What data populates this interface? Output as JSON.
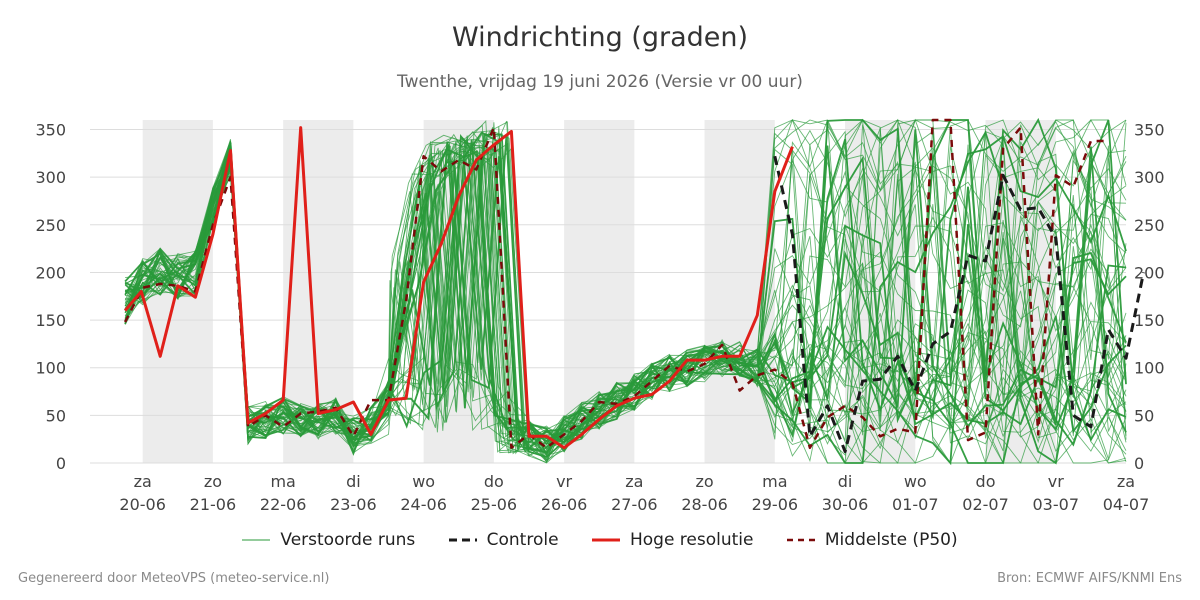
{
  "title": "Windrichting (graden)",
  "subtitle": "Twenthe, vrijdag 19 juni 2026 (Versie vr 00 uur)",
  "footer_left": "Gegenereerd door MeteoVPS (meteo-service.nl)",
  "footer_right": "Bron: ECMWF AIFS/KNMI Ens",
  "legend": {
    "ensemble": "Verstoorde runs",
    "control": "Controle",
    "hires": "Hoge resolutie",
    "median": "Middelste (P50)"
  },
  "colors": {
    "ensemble": "#2a9a3a",
    "control": "#1a1a1a",
    "hires": "#e0201a",
    "median": "#7a0a0a",
    "night_shade": "#ececec",
    "grid": "#dddddd"
  },
  "chart_data": {
    "type": "line",
    "title": "Windrichting (graden)",
    "ylim": [
      0,
      360
    ],
    "yticks": [
      0,
      50,
      100,
      150,
      200,
      250,
      300,
      350
    ],
    "x_unit": "days since 19-06 00:00",
    "xlim": [
      0.75,
      15.0
    ],
    "xticks": [
      {
        "x": 1,
        "day": "za",
        "date": "20-06"
      },
      {
        "x": 2,
        "day": "zo",
        "date": "21-06"
      },
      {
        "x": 3,
        "day": "ma",
        "date": "22-06"
      },
      {
        "x": 4,
        "day": "di",
        "date": "23-06"
      },
      {
        "x": 5,
        "day": "wo",
        "date": "24-06"
      },
      {
        "x": 6,
        "day": "do",
        "date": "25-06"
      },
      {
        "x": 7,
        "day": "vr",
        "date": "26-06"
      },
      {
        "x": 8,
        "day": "za",
        "date": "27-06"
      },
      {
        "x": 9,
        "day": "zo",
        "date": "28-06"
      },
      {
        "x": 10,
        "day": "ma",
        "date": "29-06"
      },
      {
        "x": 11,
        "day": "di",
        "date": "30-06"
      },
      {
        "x": 12,
        "day": "wo",
        "date": "01-07"
      },
      {
        "x": 13,
        "day": "do",
        "date": "02-07"
      },
      {
        "x": 14,
        "day": "vr",
        "date": "03-07"
      },
      {
        "x": 15,
        "day": "za",
        "date": "04-07"
      }
    ],
    "shaded_days": [
      [
        1,
        2
      ],
      [
        3,
        4
      ],
      [
        5,
        6
      ],
      [
        7,
        8
      ],
      [
        9,
        10
      ],
      [
        11,
        12
      ],
      [
        13,
        14
      ]
    ],
    "grid": true,
    "legend_position": "bottom",
    "series": [
      {
        "name": "Hoge resolutie",
        "style": "solid",
        "points": [
          [
            0.75,
            160
          ],
          [
            0.98,
            180
          ],
          [
            1.25,
            112
          ],
          [
            1.5,
            186
          ],
          [
            1.75,
            174
          ],
          [
            2.0,
            240
          ],
          [
            2.25,
            328
          ],
          [
            2.5,
            42
          ],
          [
            2.75,
            52
          ],
          [
            3.0,
            66
          ],
          [
            3.25,
            352
          ],
          [
            3.5,
            52
          ],
          [
            3.75,
            56
          ],
          [
            4.0,
            64
          ],
          [
            4.25,
            30
          ],
          [
            4.5,
            66
          ],
          [
            4.75,
            68
          ],
          [
            5.0,
            190
          ],
          [
            5.25,
            230
          ],
          [
            5.5,
            280
          ],
          [
            5.75,
            318
          ],
          [
            6.0,
            334
          ],
          [
            6.25,
            348
          ],
          [
            6.5,
            28
          ],
          [
            6.75,
            28
          ],
          [
            7.0,
            16
          ],
          [
            7.25,
            30
          ],
          [
            7.5,
            46
          ],
          [
            7.75,
            60
          ],
          [
            8.0,
            68
          ],
          [
            8.25,
            72
          ],
          [
            8.5,
            86
          ],
          [
            8.75,
            108
          ],
          [
            9.0,
            108
          ],
          [
            9.25,
            112
          ],
          [
            9.5,
            112
          ],
          [
            9.75,
            155
          ],
          [
            10.0,
            285
          ],
          [
            10.25,
            332
          ]
        ]
      },
      {
        "name": "Controle",
        "style": "dashed",
        "points": [
          [
            10.0,
            322
          ],
          [
            10.25,
            240
          ],
          [
            10.5,
            28
          ],
          [
            10.75,
            60
          ],
          [
            11.0,
            12
          ],
          [
            11.25,
            86
          ],
          [
            11.5,
            88
          ],
          [
            11.75,
            112
          ],
          [
            12.0,
            76
          ],
          [
            12.25,
            125
          ],
          [
            12.5,
            138
          ],
          [
            12.75,
            218
          ],
          [
            13.0,
            212
          ],
          [
            13.25,
            302
          ],
          [
            13.5,
            266
          ],
          [
            13.75,
            268
          ],
          [
            14.0,
            236
          ],
          [
            14.25,
            50
          ],
          [
            14.5,
            38
          ],
          [
            14.75,
            140
          ],
          [
            15.0,
            110
          ],
          [
            15.25,
            200
          ]
        ]
      },
      {
        "name": "Middelste (P50)",
        "style": "dashed",
        "points": [
          [
            0.75,
            148
          ],
          [
            1.0,
            184
          ],
          [
            1.25,
            188
          ],
          [
            1.5,
            186
          ],
          [
            1.75,
            180
          ],
          [
            2.0,
            250
          ],
          [
            2.25,
            300
          ],
          [
            2.5,
            38
          ],
          [
            2.75,
            50
          ],
          [
            3.0,
            38
          ],
          [
            3.25,
            52
          ],
          [
            3.5,
            54
          ],
          [
            3.75,
            58
          ],
          [
            4.0,
            28
          ],
          [
            4.25,
            66
          ],
          [
            4.5,
            66
          ],
          [
            4.75,
            170
          ],
          [
            5.0,
            322
          ],
          [
            5.25,
            306
          ],
          [
            5.5,
            318
          ],
          [
            5.75,
            308
          ],
          [
            6.0,
            352
          ],
          [
            6.25,
            16
          ],
          [
            6.5,
            30
          ],
          [
            6.75,
            16
          ],
          [
            7.0,
            30
          ],
          [
            7.25,
            44
          ],
          [
            7.5,
            64
          ],
          [
            7.75,
            62
          ],
          [
            8.0,
            70
          ],
          [
            8.25,
            86
          ],
          [
            8.5,
            102
          ],
          [
            8.75,
            96
          ],
          [
            9.0,
            104
          ],
          [
            9.25,
            124
          ],
          [
            9.5,
            76
          ],
          [
            9.75,
            92
          ],
          [
            10.0,
            98
          ],
          [
            10.25,
            84
          ],
          [
            10.5,
            16
          ],
          [
            10.75,
            48
          ],
          [
            11.0,
            60
          ],
          [
            11.25,
            48
          ],
          [
            11.5,
            28
          ],
          [
            11.75,
            36
          ],
          [
            12.0,
            32
          ],
          [
            12.25,
            360
          ],
          [
            12.5,
            360
          ],
          [
            12.75,
            24
          ],
          [
            13.0,
            32
          ],
          [
            13.25,
            330
          ],
          [
            13.5,
            352
          ],
          [
            13.75,
            30
          ],
          [
            14.0,
            302
          ],
          [
            14.25,
            290
          ],
          [
            14.5,
            338
          ],
          [
            14.75,
            338
          ]
        ]
      }
    ],
    "ensemble": {
      "name": "Verstoorde runs",
      "members": 50,
      "x_step": 0.25,
      "typical_path": [
        [
          0.75,
          170
        ],
        [
          1.0,
          190
        ],
        [
          1.25,
          200
        ],
        [
          1.5,
          195
        ],
        [
          1.75,
          200
        ],
        [
          2.0,
          270
        ],
        [
          2.25,
          320
        ],
        [
          2.5,
          40
        ],
        [
          2.75,
          45
        ],
        [
          3.0,
          50
        ],
        [
          3.25,
          45
        ],
        [
          3.5,
          45
        ],
        [
          3.75,
          50
        ],
        [
          4.0,
          30
        ],
        [
          4.25,
          40
        ],
        [
          4.5,
          70
        ],
        [
          4.75,
          200
        ],
        [
          5.0,
          300
        ],
        [
          5.25,
          320
        ],
        [
          5.5,
          330
        ],
        [
          5.75,
          330
        ],
        [
          6.0,
          340
        ],
        [
          6.25,
          30
        ],
        [
          6.5,
          25
        ],
        [
          6.75,
          20
        ],
        [
          7.0,
          30
        ],
        [
          7.25,
          45
        ],
        [
          7.5,
          55
        ],
        [
          7.75,
          65
        ],
        [
          8.0,
          75
        ],
        [
          8.25,
          85
        ],
        [
          8.5,
          95
        ],
        [
          8.75,
          100
        ],
        [
          9.0,
          105
        ],
        [
          9.25,
          110
        ],
        [
          9.5,
          110
        ],
        [
          9.75,
          100
        ]
      ]
    }
  }
}
